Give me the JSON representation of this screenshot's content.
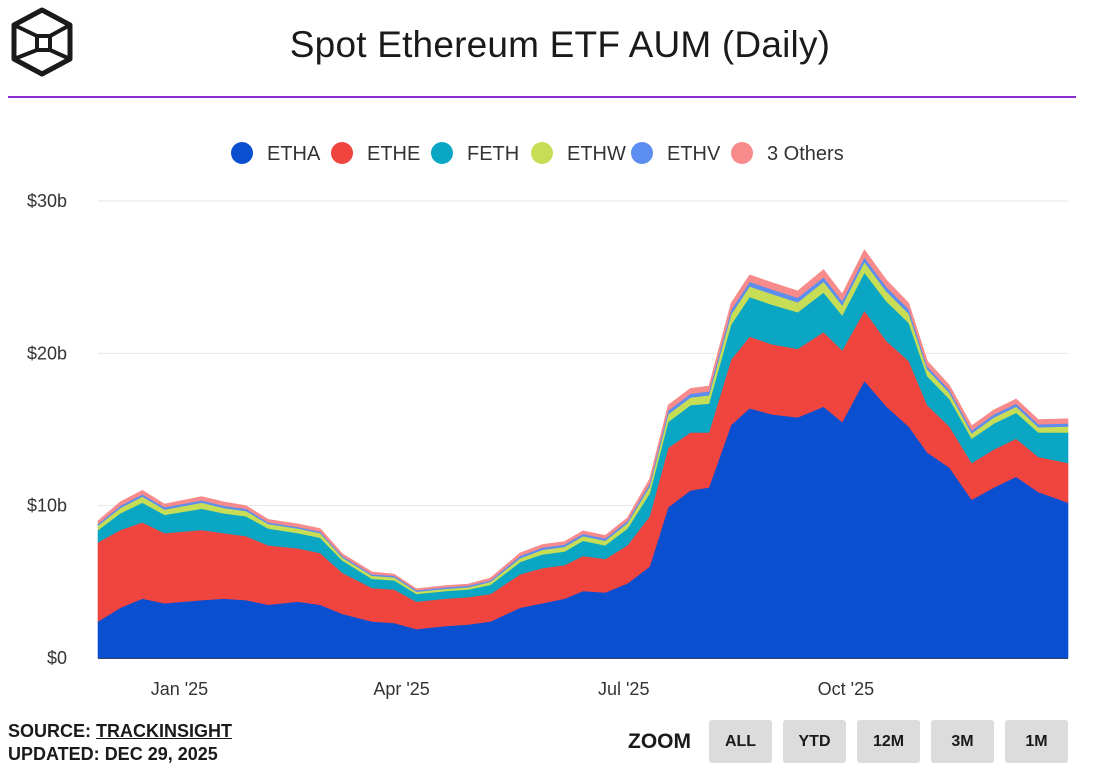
{
  "header": {
    "title": "Spot Ethereum ETF AUM (Daily)"
  },
  "colors": {
    "accent_rule": "#8a2bd0",
    "grid": "#e6e6e6"
  },
  "chart_data": {
    "type": "area",
    "stacked": true,
    "title": "Spot Ethereum ETF AUM (Daily)",
    "y_tick_labels": [
      "$0",
      "$10b",
      "$20b",
      "$30b"
    ],
    "ylim": [
      0,
      30
    ],
    "yunit": "billions USD",
    "x_tick_labels": [
      "Jan '25",
      "Apr '25",
      "Jul '25",
      "Oct '25"
    ],
    "x_tick_positions_month": [
      1,
      4,
      7,
      10
    ],
    "x_range_month": [
      -0.1,
      13.0
    ],
    "x": [
      -0.1,
      0.2,
      0.5,
      0.8,
      1.3,
      1.6,
      1.9,
      2.2,
      2.6,
      2.9,
      3.2,
      3.6,
      3.9,
      4.2,
      4.6,
      4.9,
      5.2,
      5.6,
      5.9,
      6.2,
      6.45,
      6.75,
      7.05,
      7.35,
      7.6,
      7.9,
      8.15,
      8.45,
      8.7,
      9.0,
      9.35,
      9.7,
      9.95,
      10.25,
      10.55,
      10.85,
      11.1,
      11.4,
      11.7,
      12.0,
      12.3,
      12.6,
      13.0
    ],
    "series": [
      {
        "name": "ETHA",
        "color": "#0b4fd1",
        "values": [
          2.4,
          3.3,
          3.9,
          3.6,
          3.8,
          3.9,
          3.8,
          3.5,
          3.7,
          3.5,
          2.9,
          2.4,
          2.3,
          1.9,
          2.1,
          2.2,
          2.4,
          3.3,
          3.6,
          3.9,
          4.4,
          4.3,
          4.9,
          6.0,
          9.9,
          11.0,
          11.2,
          15.3,
          16.4,
          16.0,
          15.8,
          16.5,
          15.5,
          18.2,
          16.5,
          15.2,
          13.5,
          12.5,
          10.4,
          11.2,
          11.9,
          10.9,
          10.2
        ]
      },
      {
        "name": "ETHE",
        "color": "#f0453f",
        "values": [
          5.2,
          5.1,
          5.0,
          4.6,
          4.6,
          4.3,
          4.2,
          3.9,
          3.5,
          3.4,
          2.7,
          2.2,
          2.2,
          1.8,
          1.8,
          1.8,
          1.8,
          2.2,
          2.3,
          2.2,
          2.3,
          2.2,
          2.5,
          3.3,
          3.9,
          3.8,
          3.6,
          4.3,
          4.7,
          4.6,
          4.5,
          4.9,
          4.7,
          4.6,
          4.3,
          4.3,
          3.1,
          2.7,
          2.4,
          2.5,
          2.5,
          2.3,
          2.6
        ]
      },
      {
        "name": "FETH",
        "color": "#0aa6c4",
        "values": [
          0.8,
          1.1,
          1.3,
          1.2,
          1.4,
          1.3,
          1.3,
          1.1,
          1.0,
          1.0,
          0.8,
          0.6,
          0.6,
          0.5,
          0.5,
          0.5,
          0.6,
          0.8,
          0.9,
          0.9,
          1.0,
          0.9,
          1.1,
          1.5,
          1.7,
          1.8,
          1.9,
          2.3,
          2.6,
          2.6,
          2.4,
          2.6,
          2.3,
          2.5,
          2.6,
          2.5,
          1.9,
          1.8,
          1.6,
          1.7,
          1.7,
          1.6,
          2.0
        ]
      },
      {
        "name": "ETHW",
        "color": "#c6dd55",
        "values": [
          0.3,
          0.35,
          0.4,
          0.35,
          0.4,
          0.35,
          0.35,
          0.3,
          0.3,
          0.3,
          0.2,
          0.2,
          0.2,
          0.15,
          0.15,
          0.15,
          0.2,
          0.25,
          0.3,
          0.3,
          0.3,
          0.3,
          0.35,
          0.45,
          0.5,
          0.5,
          0.55,
          0.65,
          0.7,
          0.7,
          0.65,
          0.7,
          0.65,
          0.7,
          0.65,
          0.6,
          0.45,
          0.4,
          0.35,
          0.4,
          0.4,
          0.35,
          0.4
        ]
      },
      {
        "name": "ETHV",
        "color": "#5b8ef0",
        "values": [
          0.1,
          0.15,
          0.15,
          0.15,
          0.15,
          0.15,
          0.15,
          0.1,
          0.1,
          0.1,
          0.1,
          0.1,
          0.1,
          0.1,
          0.1,
          0.1,
          0.1,
          0.15,
          0.15,
          0.15,
          0.15,
          0.15,
          0.15,
          0.2,
          0.25,
          0.25,
          0.25,
          0.3,
          0.3,
          0.3,
          0.3,
          0.3,
          0.3,
          0.3,
          0.3,
          0.3,
          0.2,
          0.2,
          0.2,
          0.2,
          0.2,
          0.2,
          0.2
        ]
      },
      {
        "name": "3 Others",
        "color": "#f78a8a",
        "values": [
          0.2,
          0.25,
          0.25,
          0.2,
          0.25,
          0.25,
          0.2,
          0.2,
          0.2,
          0.2,
          0.15,
          0.15,
          0.1,
          0.1,
          0.1,
          0.1,
          0.15,
          0.2,
          0.2,
          0.2,
          0.2,
          0.2,
          0.2,
          0.3,
          0.35,
          0.35,
          0.35,
          0.45,
          0.45,
          0.45,
          0.45,
          0.5,
          0.45,
          0.5,
          0.45,
          0.4,
          0.35,
          0.3,
          0.3,
          0.3,
          0.3,
          0.3,
          0.3
        ]
      }
    ],
    "legend_position": "top-center"
  },
  "footer": {
    "source_label": "SOURCE:",
    "source_name": "TRACKINSIGHT",
    "updated_label": "UPDATED:",
    "updated_date": "DEC 29, 2025"
  },
  "zoom": {
    "label": "ZOOM",
    "buttons": [
      "ALL",
      "YTD",
      "12M",
      "3M",
      "1M"
    ]
  }
}
